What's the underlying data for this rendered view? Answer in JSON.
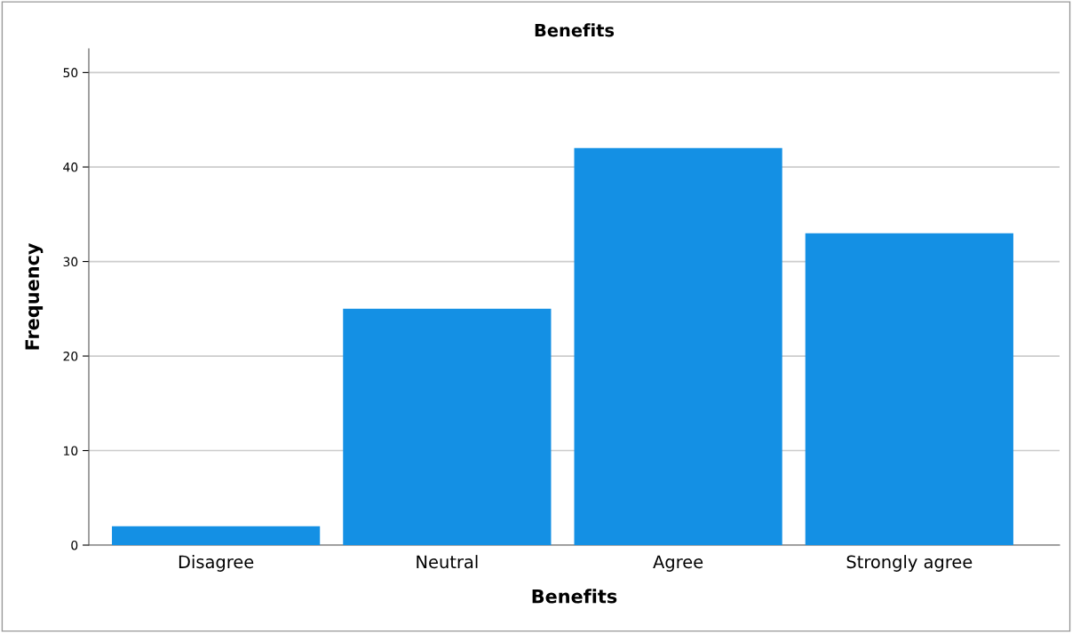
{
  "chart_data": {
    "type": "bar",
    "title": "Benefits",
    "xlabel": "Benefits",
    "ylabel": "Frequency",
    "categories": [
      "Disagree",
      "Neutral",
      "Agree",
      "Strongly agree"
    ],
    "values": [
      2,
      25,
      42,
      33
    ],
    "color": "#1490e4",
    "ylim": [
      0,
      52.5
    ],
    "yticks": [
      0,
      10,
      20,
      30,
      40,
      50
    ],
    "grid": "y"
  }
}
